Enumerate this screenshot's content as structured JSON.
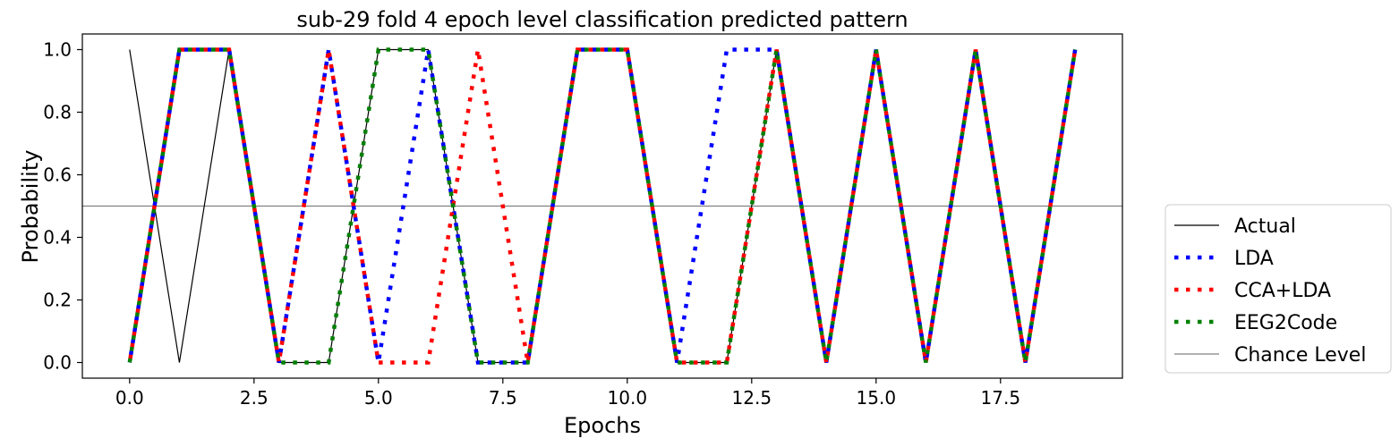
{
  "chart_data": {
    "type": "line",
    "title": "sub-29 fold 4 epoch level classification predicted pattern",
    "xlabel": "Epochs",
    "ylabel": "Probability",
    "xlim": [
      -0.95,
      19.95
    ],
    "ylim": [
      -0.05,
      1.05
    ],
    "xticks": [
      0,
      2.5,
      5,
      7.5,
      10,
      12.5,
      15,
      17.5
    ],
    "xtick_labels": [
      "0.0",
      "2.5",
      "5.0",
      "7.5",
      "10.0",
      "12.5",
      "15.0",
      "17.5"
    ],
    "yticks": [
      0,
      0.2,
      0.4,
      0.6,
      0.8,
      1.0
    ],
    "ytick_labels": [
      "0.0",
      "0.2",
      "0.4",
      "0.6",
      "0.8",
      "1.0"
    ],
    "legend_position": "outside-right-bottom",
    "grid": false,
    "series": [
      {
        "name": "Actual",
        "style": "solid",
        "color": "#000000",
        "x": [
          0,
          1,
          2,
          3,
          4,
          5,
          6,
          7,
          8,
          9,
          10,
          11,
          12,
          13,
          14,
          15,
          16,
          17,
          18,
          19
        ],
        "y": [
          1,
          0,
          1,
          0,
          0,
          1,
          1,
          0,
          0,
          1,
          1,
          0,
          0,
          1,
          0,
          1,
          0,
          1,
          0,
          1
        ]
      },
      {
        "name": "LDA",
        "style": "dotted",
        "color": "#0000ff",
        "x": [
          0,
          1,
          2,
          3,
          4,
          5,
          6,
          7,
          8,
          9,
          10,
          11,
          12,
          13,
          14,
          15,
          16,
          17,
          18,
          19
        ],
        "y": [
          0,
          1,
          1,
          0,
          1,
          0,
          1,
          0,
          0,
          1,
          1,
          0,
          1,
          1,
          0,
          1,
          0,
          1,
          0,
          1
        ]
      },
      {
        "name": "CCA+LDA",
        "style": "dotted",
        "color": "#ff0000",
        "x": [
          0,
          1,
          2,
          3,
          4,
          5,
          6,
          7,
          8,
          9,
          10,
          11,
          12,
          13,
          14,
          15,
          16,
          17,
          18,
          19
        ],
        "y": [
          0,
          1,
          1,
          0,
          1,
          0,
          0,
          1,
          0,
          1,
          1,
          0,
          0,
          1,
          0,
          1,
          0,
          1,
          0,
          1
        ]
      },
      {
        "name": "EEG2Code",
        "style": "dotted",
        "color": "#008000",
        "x": [
          0,
          1,
          2,
          3,
          4,
          5,
          6,
          7,
          8,
          9,
          10,
          11,
          12,
          13,
          14,
          15,
          16,
          17,
          18,
          19
        ],
        "y": [
          0,
          1,
          1,
          0,
          0,
          1,
          1,
          0,
          0,
          1,
          1,
          0,
          0,
          1,
          0,
          1,
          0,
          1,
          0,
          1
        ]
      }
    ],
    "reference_lines": [
      {
        "name": "Chance Level",
        "y": 0.5,
        "color": "#808080"
      }
    ]
  }
}
